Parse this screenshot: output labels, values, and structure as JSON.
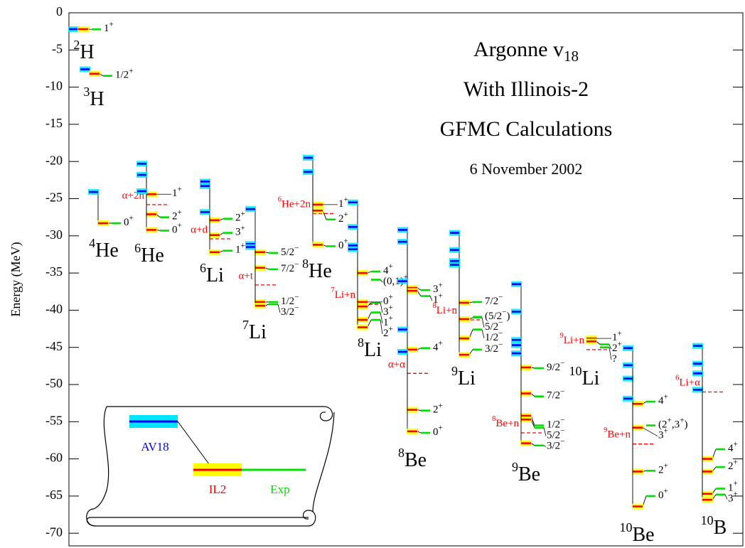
{
  "chart_data": {
    "type": "levels",
    "title": "Argonne v18",
    "subtitles": [
      "With Illinois-2",
      "GFMC Calculations",
      "6 November 2002"
    ],
    "y_label": "Energy (MeV)",
    "ylim": [
      -71.7,
      0
    ],
    "yticks": [
      0,
      -5,
      -10,
      -15,
      -20,
      -25,
      -30,
      -35,
      -40,
      -45,
      -50,
      -55,
      -60,
      -65,
      -70
    ],
    "series": [
      {
        "name": "AV18",
        "color": "#0000ff",
        "band_color": "#00e5ff"
      },
      {
        "name": "IL2",
        "color": "#ff0000",
        "band_color": "#ffff00"
      },
      {
        "name": "Exp",
        "color": "#00e000"
      }
    ],
    "nuclei": [
      {
        "mass": "2",
        "element": "H",
        "levels": [
          {
            "spin": "1+",
            "values": [
              -2.2,
              -2.2,
              -2.22
            ]
          }
        ],
        "thresholds": []
      },
      {
        "mass": "3",
        "element": "H",
        "levels": [
          {
            "spin": "1/2+",
            "values": [
              -7.6,
              -8.2,
              -8.48
            ]
          }
        ],
        "thresholds": []
      },
      {
        "mass": "4",
        "element": "He",
        "levels": [
          {
            "spin": "0+",
            "values": [
              -24.1,
              -28.3,
              -28.3
            ]
          }
        ],
        "thresholds": []
      },
      {
        "mass": "6",
        "element": "He",
        "levels": [
          {
            "spin": "1+",
            "values": [
              -20.3,
              -24.4,
              null
            ]
          },
          {
            "spin": "2+",
            "values": [
              -21.8,
              -27.1,
              -27.5
            ]
          },
          {
            "spin": "0+",
            "values": [
              -24.0,
              -29.2,
              -29.3
            ]
          }
        ],
        "thresholds": [
          {
            "label": "α+2n",
            "energy": -25.8
          }
        ]
      },
      {
        "mass": "6",
        "element": "Li",
        "levels": [
          {
            "spin": "2+",
            "values": [
              -22.7,
              -27.9,
              -27.7
            ]
          },
          {
            "spin": "3+",
            "values": [
              -23.3,
              -29.9,
              -29.6
            ]
          },
          {
            "spin": "1+",
            "values": [
              -26.8,
              -32.2,
              -32.0
            ]
          }
        ],
        "thresholds": [
          {
            "label": "α+d",
            "energy": -30.4
          }
        ]
      },
      {
        "mass": "7",
        "element": "Li",
        "levels": [
          {
            "spin": "5/2−",
            "values": [
              null,
              -32.2,
              -32.3
            ]
          },
          {
            "spin": "7/2−",
            "values": [
              -26.4,
              -34.3,
              -34.5
            ]
          },
          {
            "spin": "1/2−",
            "values": [
              -31.1,
              -38.9,
              -38.9
            ]
          },
          {
            "spin": "3/2−",
            "values": [
              -31.5,
              -39.4,
              -39.2
            ]
          }
        ],
        "thresholds": [
          {
            "label": "α+t",
            "energy": -36.6
          }
        ]
      },
      {
        "mass": "8",
        "element": "He",
        "levels": [
          {
            "spin": "1+",
            "values": [
              null,
              -25.8,
              null
            ]
          },
          {
            "spin": "2+",
            "values": [
              -19.5,
              -26.6,
              -27.8
            ]
          },
          {
            "spin": "0+",
            "values": [
              -21.4,
              -31.2,
              -31.4
            ]
          }
        ],
        "thresholds": [
          {
            "label": "6He+2n",
            "energy": -27.0
          }
        ]
      },
      {
        "mass": "8",
        "element": "Li",
        "levels": [
          {
            "spin": "4+",
            "values": [
              -25.5,
              -35.0,
              -34.8
            ]
          },
          {
            "spin": "(0,1)+",
            "values": [
              null,
              null,
              -35.9
            ]
          },
          {
            "spin": "0+",
            "values": [
              null,
              -38.9,
              null
            ]
          },
          {
            "spin": "3+",
            "values": [
              -28.8,
              -39.5,
              -39.0
            ]
          },
          {
            "spin": "1+",
            "values": [
              -31.3,
              -41.3,
              -40.3
            ]
          },
          {
            "spin": "2+",
            "values": [
              -31.8,
              -42.3,
              -41.3
            ]
          }
        ],
        "thresholds": [
          {
            "label": "7Li+n",
            "energy": -39.2
          }
        ]
      },
      {
        "mass": "8",
        "element": "Be",
        "levels": [
          {
            "spin": "3+",
            "values": [
              -29.2,
              -37.0,
              -37.3
            ]
          },
          {
            "spin": "1+",
            "values": [
              -30.8,
              -37.4,
              -38.1
            ]
          },
          {
            "spin": "4+",
            "values": [
              -36.1,
              -45.3,
              -45.1
            ]
          },
          {
            "spin": "2+",
            "values": [
              -42.6,
              -53.4,
              -53.5
            ]
          },
          {
            "spin": "0+",
            "values": [
              -45.6,
              -56.3,
              -56.5
            ]
          }
        ],
        "thresholds": [
          {
            "label": "α+α",
            "energy": -48.5
          }
        ]
      },
      {
        "mass": "9",
        "element": "Li",
        "levels": [
          {
            "spin": "7/2−",
            "values": [
              -29.6,
              -39.0,
              -38.9
            ]
          },
          {
            "spin": "(5/2−)",
            "values": [
              null,
              null,
              -40.9
            ]
          },
          {
            "spin": "5/2−",
            "values": [
              -31.9,
              -41.2,
              -41.0
            ]
          },
          {
            "spin": "1/2−",
            "values": [
              -33.4,
              -43.8,
              -42.6
            ]
          },
          {
            "spin": "3/2−",
            "values": [
              -33.9,
              -46.0,
              -45.3
            ]
          }
        ],
        "thresholds": [
          {
            "label": "8Li+n",
            "energy": -41.3
          }
        ]
      },
      {
        "mass": "9",
        "element": "Be",
        "levels": [
          {
            "spin": "9/2−",
            "values": [
              -36.5,
              -47.7,
              -47.8
            ]
          },
          {
            "spin": "7/2−",
            "values": [
              -40.2,
              -51.2,
              -51.6
            ]
          },
          {
            "spin": "1/2−",
            "values": [
              -44.0,
              -54.2,
              -55.5
            ]
          },
          {
            "spin": "5/2−",
            "values": [
              -44.7,
              -54.7,
              -55.8
            ]
          },
          {
            "spin": "3/2−",
            "values": [
              -45.8,
              -57.9,
              -58.2
            ]
          }
        ],
        "thresholds": [
          {
            "label": "8Be+n",
            "energy": -56.5
          }
        ]
      },
      {
        "mass": "10",
        "element": "Li",
        "levels": [
          {
            "spin": "1+",
            "values": [
              null,
              -43.8,
              null
            ]
          },
          {
            "spin": "2+",
            "values": [
              null,
              -44.2,
              -44.6
            ]
          },
          {
            "spin": "?",
            "values": [
              null,
              null,
              -45.0
            ]
          }
        ],
        "thresholds": [
          {
            "label": "9Li+n",
            "energy": -45.3
          }
        ]
      },
      {
        "mass": "10",
        "element": "Be",
        "levels": [
          {
            "spin": "4+",
            "values": [
              -45.1,
              -52.6,
              -52.3
            ]
          },
          {
            "spin": "(2+,3+)",
            "values": [
              null,
              null,
              -55.5
            ]
          },
          {
            "spin": "3+",
            "values": [
              -49.2,
              -55.8,
              null
            ]
          },
          {
            "spin": "2+",
            "values": [
              -47.4,
              -61.7,
              -61.6
            ]
          },
          {
            "spin": "0+",
            "values": [
              -51.9,
              -66.4,
              -65.0
            ]
          }
        ],
        "thresholds": [
          {
            "label": "9Be+n",
            "energy": -58.0
          }
        ]
      },
      {
        "mass": "10",
        "element": "B",
        "levels": [
          {
            "spin": "4+",
            "values": [
              -44.8,
              -60.0,
              -58.7
            ]
          },
          {
            "spin": "2+",
            "values": [
              -47.2,
              -61.7,
              -61.1
            ]
          },
          {
            "spin": "1+",
            "values": [
              -50.7,
              -64.7,
              -64.0
            ]
          },
          {
            "spin": "3+",
            "values": [
              -48.5,
              -65.5,
              -64.8
            ]
          }
        ],
        "thresholds": [
          {
            "label": "6Li+α",
            "energy": -51.0
          }
        ]
      }
    ]
  }
}
